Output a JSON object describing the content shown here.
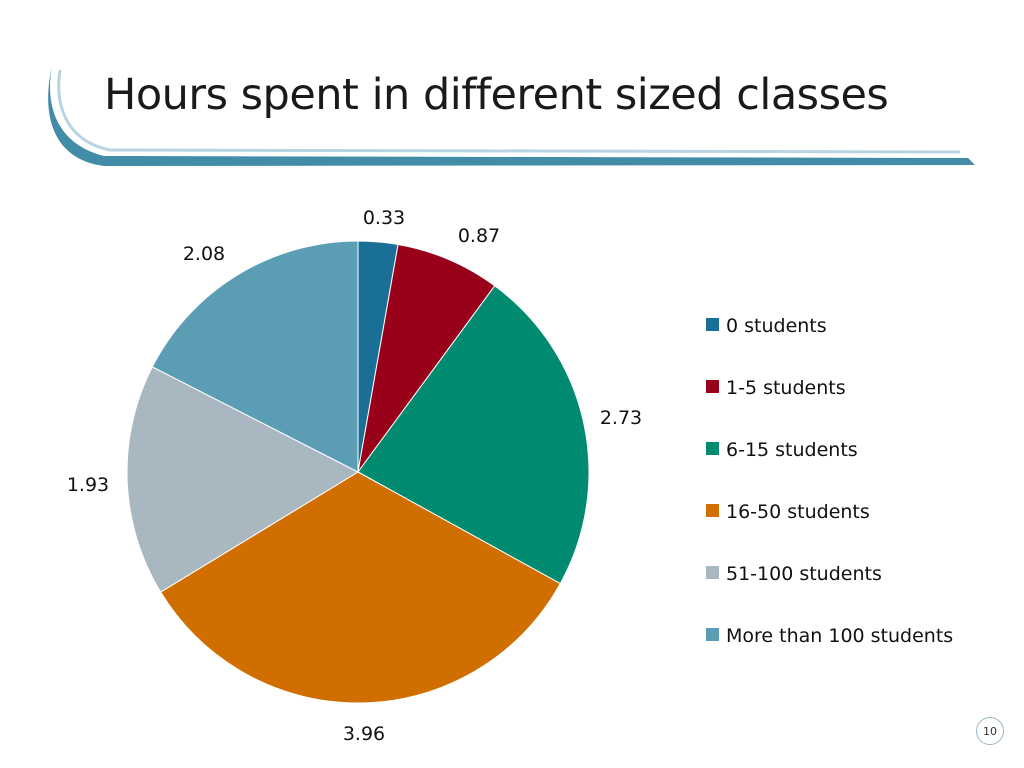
{
  "slide": {
    "title": "Hours spent in different sized classes",
    "page_number": "10"
  },
  "colors": {
    "swoosh": "#2f7f9e",
    "background": "#ffffff"
  },
  "chart_data": {
    "type": "pie",
    "title": "",
    "categories": [
      "0 students",
      "1-5 students",
      "6-15 students",
      "16-50 students",
      "51-100 students",
      "More than 100 students"
    ],
    "values": [
      0.33,
      0.87,
      2.73,
      3.96,
      1.93,
      2.08
    ],
    "labels": [
      "0.33",
      "0.87",
      "2.73",
      "3.96",
      "1.93",
      "2.08"
    ],
    "colors": [
      "#1a6f96",
      "#99001a",
      "#008b71",
      "#d06f00",
      "#a9b7c0",
      "#5b9db5"
    ],
    "start": "12 o'clock",
    "direction": "clockwise",
    "legend_position": "right"
  }
}
